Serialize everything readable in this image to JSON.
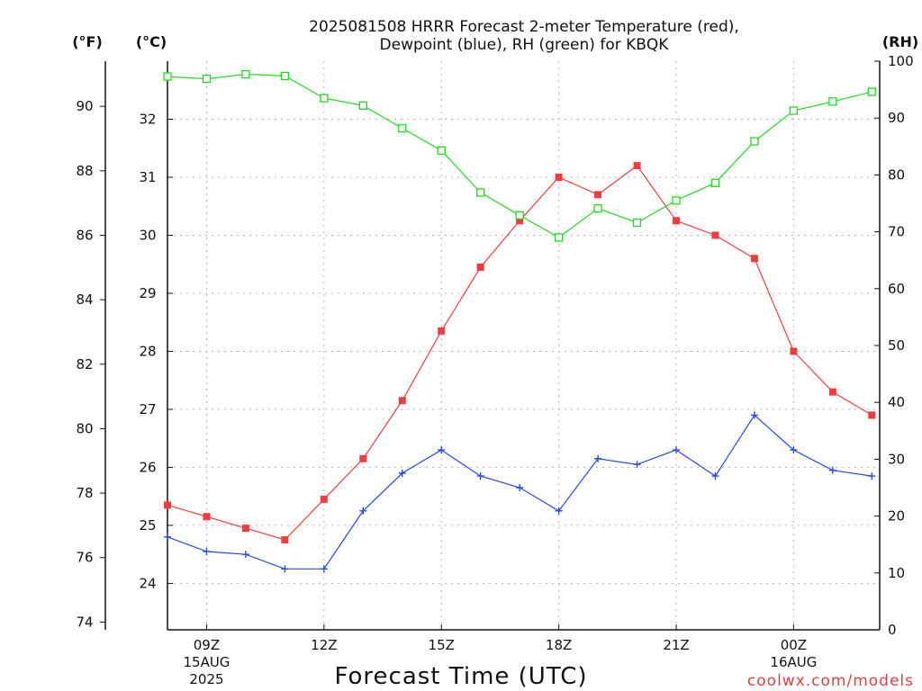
{
  "chart_data": {
    "type": "line",
    "title_line1": "2025081508 HRRR Forecast 2-meter Temperature (red),",
    "title_line2": "Dewpoint (blue), RH (green) for KBQK",
    "xlabel": "Forecast Time (UTC)",
    "unit_labels": {
      "fahrenheit": "(°F)",
      "celsius": "(°C)",
      "rh": "(RH)"
    },
    "credit": "coolwx.com/models",
    "x_hours": [
      8,
      9,
      10,
      11,
      12,
      13,
      14,
      15,
      16,
      17,
      18,
      19,
      20,
      21,
      22,
      23,
      24,
      25,
      26
    ],
    "x_range": [
      8,
      26.2
    ],
    "x_ticks": [
      {
        "hour": 9,
        "line1": "09Z",
        "line2": "15AUG",
        "line3": "2025"
      },
      {
        "hour": 12,
        "line1": "12Z",
        "line2": "",
        "line3": ""
      },
      {
        "hour": 15,
        "line1": "15Z",
        "line2": "",
        "line3": ""
      },
      {
        "hour": 18,
        "line1": "18Z",
        "line2": "",
        "line3": ""
      },
      {
        "hour": 21,
        "line1": "21Z",
        "line2": "",
        "line3": ""
      },
      {
        "hour": 24,
        "line1": "00Z",
        "line2": "16AUG",
        "line3": ""
      }
    ],
    "y_left_f": {
      "ticks": [
        "74",
        "76",
        "78",
        "80",
        "82",
        "84",
        "86",
        "88",
        "90"
      ]
    },
    "y_left_c": {
      "ticks": [
        "24",
        "25",
        "26",
        "27",
        "28",
        "29",
        "30",
        "31",
        "32"
      ]
    },
    "y_right_rh": {
      "range": [
        0,
        100
      ],
      "ticks": [
        "0",
        "10",
        "20",
        "30",
        "40",
        "50",
        "60",
        "70",
        "80",
        "90",
        "100"
      ]
    },
    "celsius_range": [
      23.2,
      33.0
    ],
    "grid": true,
    "series": [
      {
        "name": "Temperature",
        "color": "#f03c3c",
        "marker": "filled-square",
        "axis": "celsius",
        "values": [
          25.35,
          25.15,
          24.95,
          24.75,
          25.45,
          26.15,
          27.15,
          28.35,
          29.45,
          30.25,
          31.0,
          30.7,
          31.2,
          30.25,
          30.0,
          29.6,
          28.0,
          27.3,
          26.9
        ]
      },
      {
        "name": "Dewpoint",
        "color": "#2a48e6",
        "marker": "plus",
        "axis": "celsius",
        "values": [
          24.8,
          24.55,
          24.5,
          24.25,
          24.25,
          25.25,
          25.9,
          26.3,
          25.85,
          25.65,
          25.25,
          26.15,
          26.05,
          26.3,
          25.85,
          26.9,
          26.3,
          25.95,
          25.85
        ]
      },
      {
        "name": "RH",
        "color": "#22d822",
        "marker": "open-square",
        "axis": "rh",
        "values": [
          97.3,
          96.9,
          97.7,
          97.4,
          93.5,
          92.2,
          88.2,
          84.3,
          76.9,
          72.9,
          69.0,
          74.1,
          71.6,
          75.5,
          78.6,
          85.9,
          91.3,
          92.9,
          94.6
        ]
      }
    ]
  }
}
